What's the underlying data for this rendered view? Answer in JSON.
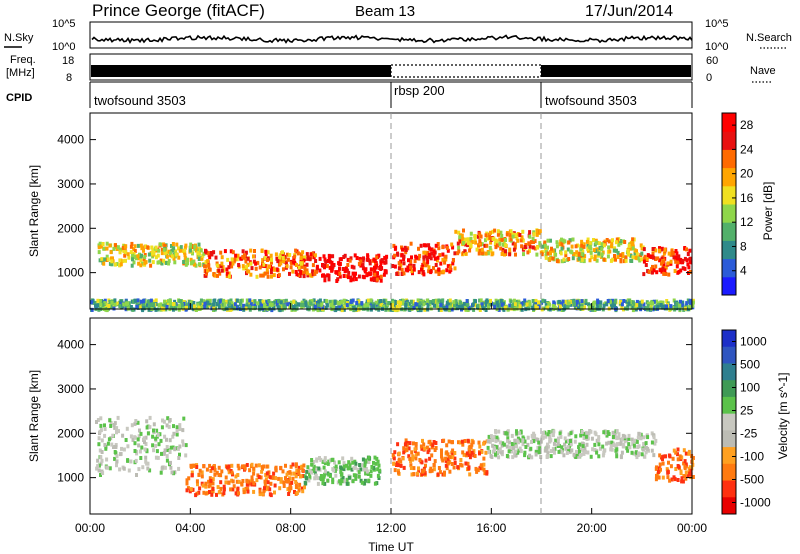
{
  "header": {
    "station": "Prince George (fitACF)",
    "beam": "Beam 13",
    "date": "17/Jun/2014"
  },
  "noise_panel": {
    "left_label": "N.Sky",
    "right_label": "N.Search",
    "left_ticks": [
      "10^5",
      "10^0"
    ],
    "right_ticks": [
      "10^5",
      "10^0"
    ]
  },
  "freq_panel": {
    "left_label_1": "Freq.",
    "left_label_2": "[MHz]",
    "left_ticks": [
      "18",
      "8"
    ],
    "right_label": "Nave",
    "right_ticks": [
      "60",
      "0"
    ]
  },
  "cpid_panel": {
    "label": "CPID",
    "segments": [
      {
        "name": "twofsound 3503",
        "start": 0,
        "end": 12
      },
      {
        "name": "rbsp 200",
        "start": 12,
        "end": 18
      },
      {
        "name": "twofsound 3503",
        "start": 18,
        "end": 24
      }
    ]
  },
  "colors": {
    "power_scale": [
      "#1b1bff",
      "#2b5bd8",
      "#2f8a8a",
      "#52b06a",
      "#8fd64a",
      "#f0e020",
      "#ffa500",
      "#ff6a00",
      "#e81010",
      "#ff0000"
    ],
    "velocity_scale": [
      "#1c2fc8",
      "#2f55c0",
      "#2f7f8f",
      "#3f9a55",
      "#5bc24a",
      "#c8c8c0",
      "#bcbcb4",
      "#ffa020",
      "#ff7a10",
      "#ff3010",
      "#e80000"
    ]
  },
  "chart_data": [
    {
      "type": "heatmap",
      "name": "Power",
      "xlabel": "Time UT",
      "ylabel": "Slant Range [km]",
      "x_ticks": [
        "00:00",
        "04:00",
        "08:00",
        "12:00",
        "16:00",
        "20:00",
        "00:00"
      ],
      "y_ticks": [
        "1000",
        "2000",
        "3000",
        "4000"
      ],
      "xlim_hours": [
        0,
        24
      ],
      "ylim_km": [
        180,
        4600
      ],
      "colorbar": {
        "label": "Power [dB]",
        "ticks": [
          "4",
          "8",
          "12",
          "16",
          "20",
          "24",
          "28"
        ],
        "range": [
          0,
          30
        ]
      },
      "bands": [
        {
          "t0": 0.3,
          "t1": 4.5,
          "r0": 1200,
          "r1": 1700,
          "level": 16
        },
        {
          "t0": 4.5,
          "t1": 9.0,
          "r0": 950,
          "r1": 1550,
          "level": 20
        },
        {
          "t0": 9.0,
          "t1": 11.8,
          "r0": 850,
          "r1": 1450,
          "level": 28
        },
        {
          "t0": 12.0,
          "t1": 14.5,
          "r0": 1000,
          "r1": 1700,
          "level": 24
        },
        {
          "t0": 14.5,
          "t1": 18.0,
          "r0": 1450,
          "r1": 2000,
          "level": 18
        },
        {
          "t0": 18.0,
          "t1": 22.0,
          "r0": 1300,
          "r1": 1800,
          "level": 16
        },
        {
          "t0": 22.0,
          "t1": 24.0,
          "r0": 1000,
          "r1": 1600,
          "level": 24
        },
        {
          "t0": 0.0,
          "t1": 24.0,
          "r0": 200,
          "r1": 420,
          "level": 8
        }
      ]
    },
    {
      "type": "heatmap",
      "name": "Velocity",
      "xlabel": "Time UT",
      "ylabel": "Slant Range [km]",
      "x_ticks": [
        "00:00",
        "04:00",
        "08:00",
        "12:00",
        "16:00",
        "20:00",
        "00:00"
      ],
      "y_ticks": [
        "1000",
        "2000",
        "3000",
        "4000"
      ],
      "xlim_hours": [
        0,
        24
      ],
      "ylim_km": [
        180,
        4600
      ],
      "colorbar": {
        "label": "Velocity [m s^-1]",
        "ticks": [
          "1000",
          "500",
          "100",
          "25",
          "-25",
          "-100",
          "-500",
          "-1000"
        ]
      },
      "bands": [
        {
          "t0": 0.2,
          "t1": 3.8,
          "r0": 1100,
          "r1": 2400,
          "level": -25
        },
        {
          "t0": 3.8,
          "t1": 8.5,
          "r0": 650,
          "r1": 1350,
          "level": -500
        },
        {
          "t0": 8.5,
          "t1": 11.5,
          "r0": 900,
          "r1": 1500,
          "level": 100
        },
        {
          "t0": 12.0,
          "t1": 15.8,
          "r0": 1100,
          "r1": 1900,
          "level": -500
        },
        {
          "t0": 15.8,
          "t1": 22.5,
          "r0": 1500,
          "r1": 2100,
          "level": -25
        },
        {
          "t0": 22.5,
          "t1": 24.0,
          "r0": 900,
          "r1": 1700,
          "level": -500
        }
      ]
    }
  ]
}
